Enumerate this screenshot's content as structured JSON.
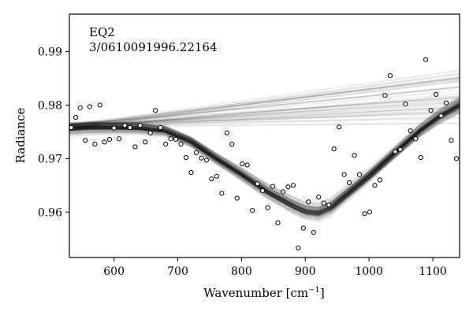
{
  "chart_data": {
    "type": "scatter",
    "annotations": [
      "EQ2",
      "3/0610091996.22164"
    ],
    "xlabel": "Wavenumber [cm",
    "xlabel_sup": "−1",
    "xlabel_end": "]",
    "ylabel": "Radiance",
    "xlim": [
      530,
      1142
    ],
    "ylim": [
      0.9515,
      0.997
    ],
    "xticks": [
      600,
      700,
      800,
      900,
      1000,
      1100
    ],
    "yticks": [
      0.96,
      0.97,
      0.98,
      0.99
    ],
    "ytick_labels": [
      "0.96",
      "0.97",
      "0.98",
      "0.99"
    ],
    "grid": false,
    "legend": "none",
    "series": [
      {
        "kind": "points",
        "marker": "open-circle",
        "x": [
          533,
          540,
          547,
          555,
          562,
          570,
          578,
          585,
          593,
          600,
          608,
          617,
          625,
          633,
          641,
          649,
          657,
          665,
          673,
          681,
          689,
          697,
          705,
          713,
          721,
          729,
          737,
          745,
          753,
          761,
          769,
          777,
          785,
          793,
          801,
          809,
          817,
          825,
          833,
          841,
          849,
          857,
          865,
          873,
          881,
          889,
          897,
          905,
          913,
          921,
          929,
          937,
          945,
          953,
          961,
          969,
          977,
          985,
          993,
          1001,
          1009,
          1017,
          1025,
          1033,
          1041,
          1049,
          1057,
          1065,
          1073,
          1081,
          1089,
          1097,
          1105,
          1113,
          1121,
          1129,
          1137
        ],
        "y": [
          0.9758,
          0.9777,
          0.9795,
          0.9734,
          0.9797,
          0.9727,
          0.98,
          0.9731,
          0.9736,
          0.9757,
          0.9737,
          0.9762,
          0.9758,
          0.9722,
          0.9762,
          0.9731,
          0.9748,
          0.979,
          0.9758,
          0.9727,
          0.9737,
          0.9736,
          0.9727,
          0.9702,
          0.9674,
          0.9711,
          0.9701,
          0.9697,
          0.9662,
          0.9667,
          0.9635,
          0.9748,
          0.9727,
          0.9626,
          0.969,
          0.9688,
          0.9603,
          0.9653,
          0.964,
          0.9608,
          0.9648,
          0.958,
          0.9638,
          0.9647,
          0.965,
          0.9533,
          0.957,
          0.9619,
          0.9562,
          0.9628,
          0.9617,
          0.9613,
          0.9718,
          0.9759,
          0.967,
          0.9655,
          0.9706,
          0.967,
          0.9597,
          0.96,
          0.965,
          0.966,
          0.9818,
          0.9855,
          0.9713,
          0.9717,
          0.9802,
          0.9752,
          0.9737,
          0.9702,
          0.9885,
          0.979,
          0.982,
          0.978,
          0.9804,
          0.9734,
          0.97
        ]
      },
      {
        "kind": "model-band",
        "name_hidden": true,
        "description_hidden": true,
        "x": [
          530,
          560,
          600,
          640,
          680,
          720,
          760,
          800,
          840,
          880,
          900,
          920,
          940,
          960,
          1000,
          1040,
          1080,
          1110,
          1142
        ],
        "y": [
          0.9756,
          0.9758,
          0.9758,
          0.9757,
          0.9752,
          0.9732,
          0.97,
          0.967,
          0.9638,
          0.9612,
          0.9601,
          0.9598,
          0.9608,
          0.9628,
          0.9667,
          0.971,
          0.9752,
          0.9778,
          0.98
        ]
      },
      {
        "kind": "straight-band",
        "x": [
          530,
          1142
        ],
        "y": [
          0.976,
          0.9815
        ]
      }
    ]
  }
}
